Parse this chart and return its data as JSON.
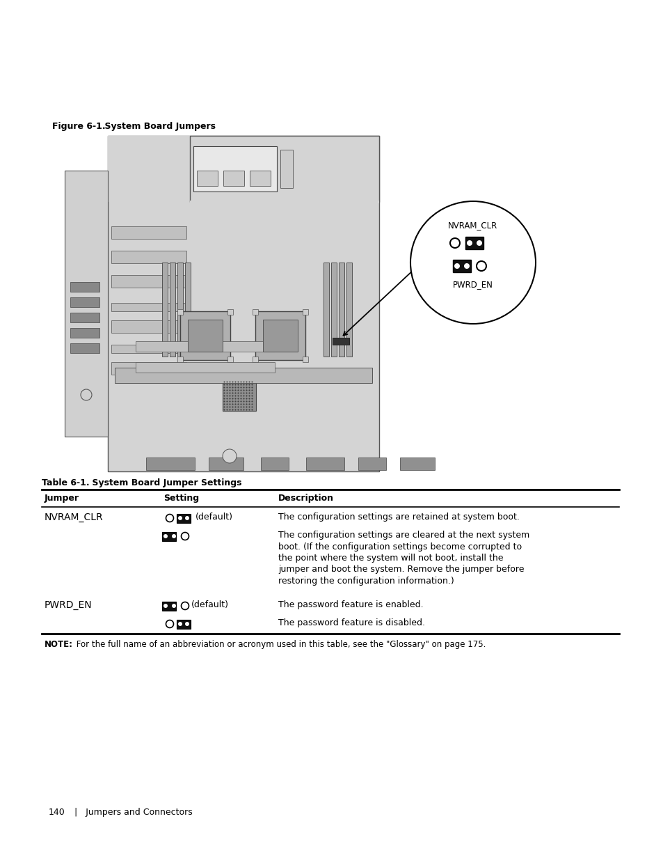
{
  "figure_title_bold": "Figure 6-1.",
  "figure_title_rest": "    System Board Jumpers",
  "table_title_bold": "Table 6-1.",
  "table_title_rest": "    System Board Jumper Settings",
  "table_headers": [
    "Jumper",
    "Setting",
    "Description"
  ],
  "note_bold": "NOTE:",
  "note_rest": " For the full name of an abbreviation or acronym used in this table, see the \"Glossary\" on page 175.",
  "footer_page": "140",
  "footer_rest": "   |   Jumpers and Connectors",
  "label_nvram_clr": "NVRAM_CLR",
  "label_pwrd_en": "PWRD_EN",
  "bg_color": "#ffffff",
  "board_fill": "#d4d4d4",
  "board_edge": "#555555",
  "row1_jumper": "NVRAM_CLR",
  "row1_default": "(default)",
  "row1_desc": "The configuration settings are retained at system boot.",
  "row2_desc": "The configuration settings are cleared at the next system\nboot. (If the configuration settings become corrupted to\nthe point where the system will not boot, install the\njumper and boot the system. Remove the jumper before\nrestoring the configuration information.)",
  "row3_jumper": "PWRD_EN",
  "row3_default": "(default)",
  "row3_desc": "The password feature is enabled.",
  "row4_desc": "The password feature is disabled."
}
